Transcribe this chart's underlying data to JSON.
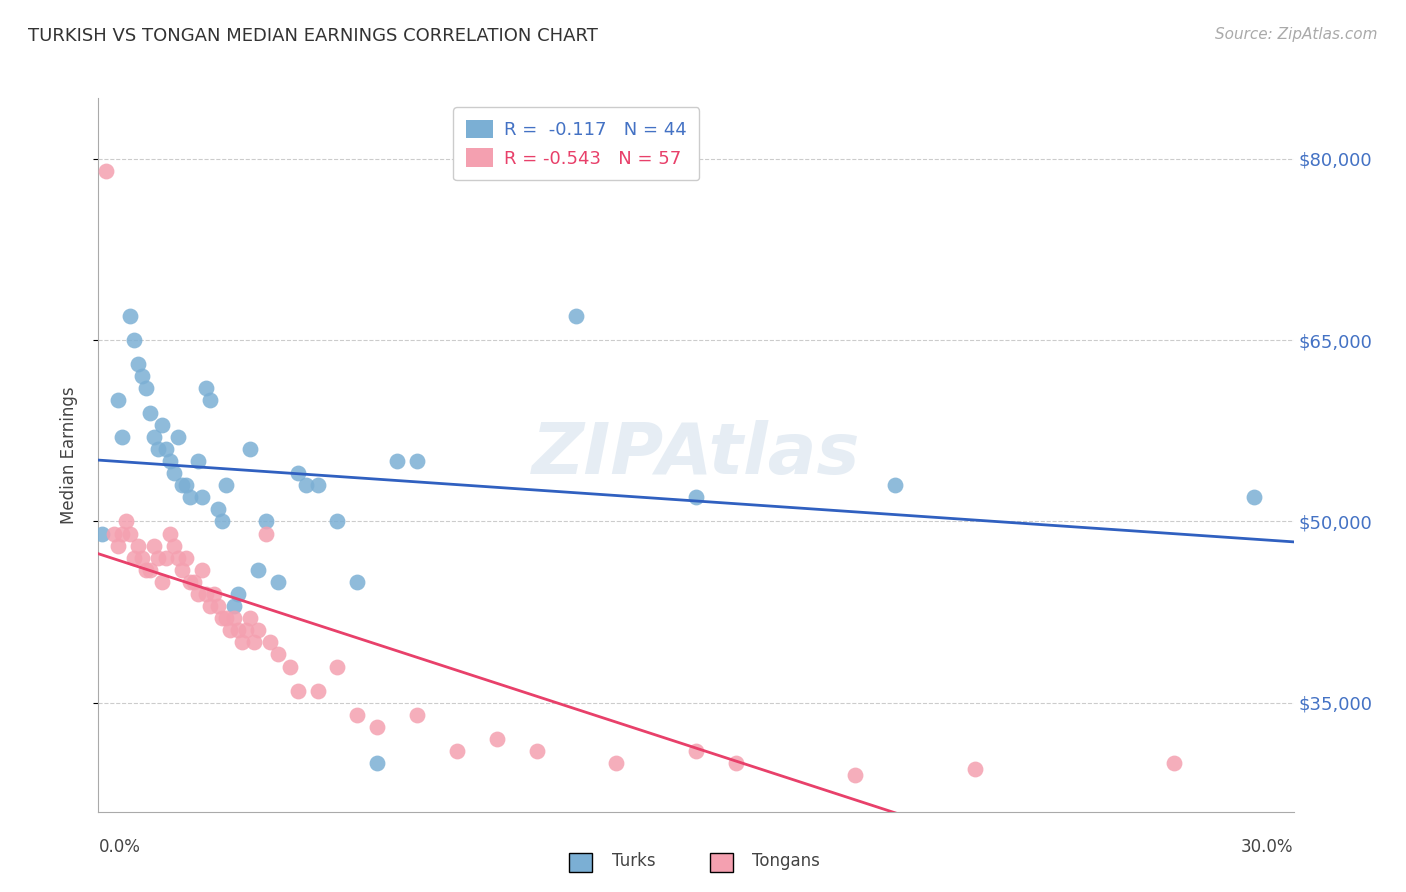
{
  "title": "TURKISH VS TONGAN MEDIAN EARNINGS CORRELATION CHART",
  "source": "Source: ZipAtlas.com",
  "ylabel": "Median Earnings",
  "watermark": "ZIPAtlas",
  "y_ticks": [
    35000,
    50000,
    65000,
    80000
  ],
  "y_tick_labels": [
    "$35,000",
    "$50,000",
    "$65,000",
    "$80,000"
  ],
  "x_min": 0.0,
  "x_max": 0.3,
  "y_min": 26000,
  "y_max": 85000,
  "turks_color": "#7bafd4",
  "tongans_color": "#f4a0b0",
  "turks_line_color": "#3060c0",
  "tongans_line_color": "#e8406a",
  "legend_turks_R": "-0.117",
  "legend_turks_N": "44",
  "legend_tongans_R": "-0.543",
  "legend_tongans_N": "57",
  "turks_x": [
    0.001,
    0.005,
    0.006,
    0.008,
    0.009,
    0.01,
    0.011,
    0.012,
    0.013,
    0.014,
    0.015,
    0.016,
    0.017,
    0.018,
    0.019,
    0.02,
    0.021,
    0.022,
    0.023,
    0.025,
    0.026,
    0.027,
    0.028,
    0.03,
    0.031,
    0.032,
    0.034,
    0.035,
    0.038,
    0.04,
    0.042,
    0.045,
    0.05,
    0.052,
    0.055,
    0.06,
    0.065,
    0.07,
    0.075,
    0.08,
    0.12,
    0.15,
    0.2,
    0.29
  ],
  "turks_y": [
    49000,
    60000,
    57000,
    67000,
    65000,
    63000,
    62000,
    61000,
    59000,
    57000,
    56000,
    58000,
    56000,
    55000,
    54000,
    57000,
    53000,
    53000,
    52000,
    55000,
    52000,
    61000,
    60000,
    51000,
    50000,
    53000,
    43000,
    44000,
    56000,
    46000,
    50000,
    45000,
    54000,
    53000,
    53000,
    50000,
    45000,
    30000,
    55000,
    55000,
    67000,
    52000,
    53000,
    52000
  ],
  "tongans_x": [
    0.002,
    0.004,
    0.005,
    0.006,
    0.007,
    0.008,
    0.009,
    0.01,
    0.011,
    0.012,
    0.013,
    0.014,
    0.015,
    0.016,
    0.017,
    0.018,
    0.019,
    0.02,
    0.021,
    0.022,
    0.023,
    0.024,
    0.025,
    0.026,
    0.027,
    0.028,
    0.029,
    0.03,
    0.031,
    0.032,
    0.033,
    0.034,
    0.035,
    0.036,
    0.037,
    0.038,
    0.039,
    0.04,
    0.042,
    0.043,
    0.045,
    0.048,
    0.05,
    0.055,
    0.06,
    0.065,
    0.07,
    0.08,
    0.09,
    0.1,
    0.11,
    0.13,
    0.15,
    0.16,
    0.19,
    0.22,
    0.27
  ],
  "tongans_y": [
    79000,
    49000,
    48000,
    49000,
    50000,
    49000,
    47000,
    48000,
    47000,
    46000,
    46000,
    48000,
    47000,
    45000,
    47000,
    49000,
    48000,
    47000,
    46000,
    47000,
    45000,
    45000,
    44000,
    46000,
    44000,
    43000,
    44000,
    43000,
    42000,
    42000,
    41000,
    42000,
    41000,
    40000,
    41000,
    42000,
    40000,
    41000,
    49000,
    40000,
    39000,
    38000,
    36000,
    36000,
    38000,
    34000,
    33000,
    34000,
    31000,
    32000,
    31000,
    30000,
    31000,
    30000,
    29000,
    29500,
    30000
  ]
}
